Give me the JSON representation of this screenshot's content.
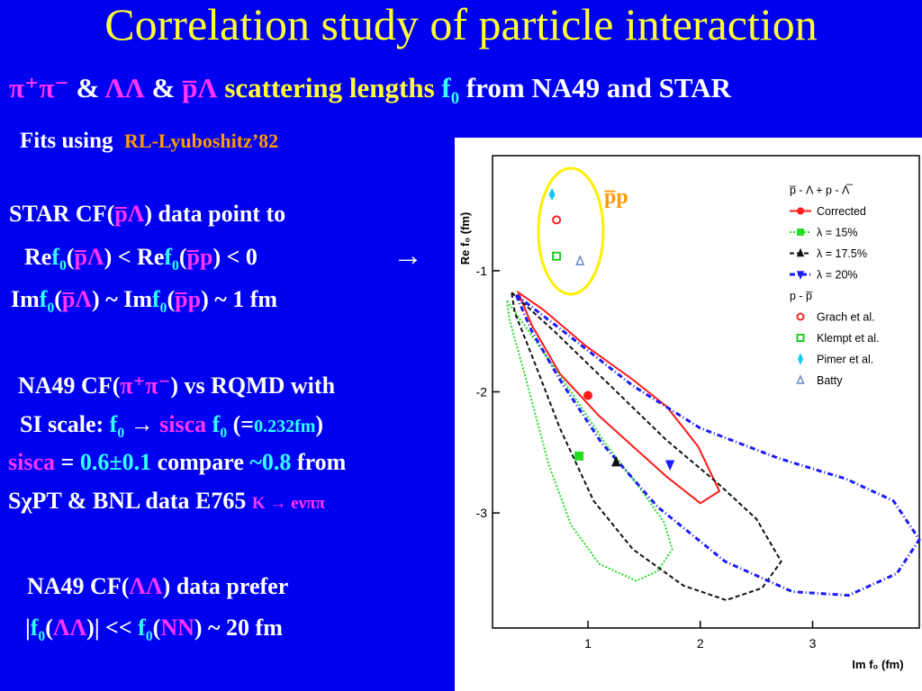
{
  "title": "Correlation study of particle interaction",
  "subtitle": {
    "pipi_glyph": "π⁺π⁻",
    "amp1": "&",
    "ll_glyph": "ΛΛ",
    "amp2": "&",
    "pl_glyph": "p̅Λ",
    "scatter_text": "scattering lengths",
    "f0": "f",
    "f0_sub": "0",
    "rest": "from NA49 and STAR"
  },
  "fits": {
    "label": "Fits using",
    "model": "RL-Lyuboshitz’82"
  },
  "star": {
    "line1_a": "STAR CF(",
    "line1_b": "p̅Λ",
    "line1_c": ") data point to",
    "line2_a": "Re",
    "line2_b": "f",
    "line2_sub": "0",
    "line2_c": "(",
    "line2_d": "p̅Λ",
    "line2_e": ") < Re",
    "line2_f": "f",
    "line2_sub2": "0",
    "line2_g": "(",
    "line2_h": "p̅p",
    "line2_i": ") < 0",
    "arrow": "→",
    "line3_a": "Im",
    "line3_b": "f",
    "line3_sub": "0",
    "line3_c": "(",
    "line3_d": "p̅Λ",
    "line3_e": ") ~ Im",
    "line3_f": "f",
    "line3_sub2": "0",
    "line3_g": "(",
    "line3_h": "p̅p",
    "line3_i": ") ~ 1 fm"
  },
  "na49_pipi": {
    "line1_a": "NA49 CF(",
    "line1_b": "π⁺π⁻",
    "line1_c": ") vs RQMD  with",
    "line2_a": "SI scale: ",
    "line2_b": "f",
    "line2_sub": "0",
    "line2_c": " → ",
    "line2_d": "sisca",
    "line2_e": " f",
    "line2_sub2": "0",
    "line2_f": " (=",
    "line2_g": "0.232fm",
    "line2_h": ")",
    "line3_a": "sisca",
    "line3_b": " = ",
    "line3_c": "0.6±0.1",
    "line3_d": " compare ",
    "line3_e": "~0.8",
    "line3_f": " from",
    "line4_a": "SχPT & BNL data E765 ",
    "line4_b": "K → eνππ"
  },
  "na49_ll": {
    "line1_a": "NA49 CF(",
    "line1_b": "ΛΛ",
    "line1_c": ") data prefer",
    "line2_a": "|",
    "line2_b": "f",
    "line2_sub": "0",
    "line2_c": "(",
    "line2_d": "ΛΛ",
    "line2_e": ")| << ",
    "line2_f": "f",
    "line2_sub2": "0",
    "line2_g": "(",
    "line2_h": "NN",
    "line2_i": ") ~ 20 fm"
  },
  "chart_data": {
    "type": "scatter",
    "title": "",
    "xlabel": "Im f₀  (fm)",
    "ylabel": "Re f₀  (fm)",
    "xlim": [
      0.15,
      3.95
    ],
    "ylim": [
      -3.95,
      -0.05
    ],
    "x_ticks": [
      "1",
      "2",
      "3"
    ],
    "x_tick_values": [
      1,
      2,
      3
    ],
    "y_ticks": [
      "-1",
      "-2",
      "-3"
    ],
    "y_tick_values": [
      -1,
      -2,
      -3
    ],
    "highlight_label": "p̅p",
    "contours": [
      {
        "name": "Corrected",
        "color": "#ff1a1a",
        "dash": "",
        "width": 2,
        "points": [
          [
            0.38,
            -1.18
          ],
          [
            0.6,
            -1.32
          ],
          [
            0.98,
            -1.62
          ],
          [
            1.4,
            -1.9
          ],
          [
            1.7,
            -2.12
          ],
          [
            1.98,
            -2.45
          ],
          [
            2.17,
            -2.82
          ],
          [
            2.0,
            -2.92
          ],
          [
            1.7,
            -2.7
          ],
          [
            1.4,
            -2.45
          ],
          [
            1.1,
            -2.2
          ],
          [
            0.75,
            -1.85
          ],
          [
            0.5,
            -1.45
          ]
        ]
      },
      {
        "name": "λ = 15%",
        "color": "#22dd22",
        "dash": "2,2",
        "width": 2,
        "points": [
          [
            0.28,
            -1.25
          ],
          [
            0.55,
            -1.6
          ],
          [
            0.85,
            -2.0
          ],
          [
            1.15,
            -2.42
          ],
          [
            1.45,
            -2.78
          ],
          [
            1.68,
            -3.08
          ],
          [
            1.75,
            -3.3
          ],
          [
            1.62,
            -3.48
          ],
          [
            1.43,
            -3.56
          ],
          [
            1.1,
            -3.42
          ],
          [
            0.85,
            -3.1
          ],
          [
            0.65,
            -2.6
          ],
          [
            0.45,
            -1.9
          ],
          [
            0.3,
            -1.4
          ]
        ]
      },
      {
        "name": "λ = 17.5%",
        "color": "#111111",
        "dash": "5,3",
        "width": 2,
        "points": [
          [
            0.32,
            -1.18
          ],
          [
            0.7,
            -1.5
          ],
          [
            1.2,
            -1.95
          ],
          [
            1.7,
            -2.4
          ],
          [
            2.15,
            -2.75
          ],
          [
            2.5,
            -3.05
          ],
          [
            2.72,
            -3.4
          ],
          [
            2.55,
            -3.62
          ],
          [
            2.23,
            -3.72
          ],
          [
            1.85,
            -3.6
          ],
          [
            1.4,
            -3.3
          ],
          [
            1.05,
            -2.9
          ],
          [
            0.75,
            -2.3
          ],
          [
            0.5,
            -1.7
          ],
          [
            0.35,
            -1.35
          ]
        ]
      },
      {
        "name": "λ = 20%",
        "color": "#1a1aff",
        "dash": "6,3,1,3",
        "width": 3,
        "points": [
          [
            0.36,
            -1.2
          ],
          [
            0.85,
            -1.55
          ],
          [
            1.4,
            -1.95
          ],
          [
            2.0,
            -2.3
          ],
          [
            2.7,
            -2.55
          ],
          [
            3.3,
            -2.72
          ],
          [
            3.72,
            -2.9
          ],
          [
            3.95,
            -3.22
          ],
          [
            3.75,
            -3.5
          ],
          [
            3.32,
            -3.68
          ],
          [
            2.82,
            -3.65
          ],
          [
            2.22,
            -3.4
          ],
          [
            1.62,
            -2.95
          ],
          [
            1.12,
            -2.42
          ],
          [
            0.75,
            -1.9
          ],
          [
            0.5,
            -1.5
          ]
        ]
      }
    ],
    "legend": [
      {
        "label": "p̅ - Λ + p - Λ̅",
        "kind": "header"
      },
      {
        "label": "Corrected",
        "kind": "line",
        "color": "#ff1a1a",
        "dash": ""
      },
      {
        "label": "λ = 15%",
        "kind": "line",
        "color": "#22dd22",
        "dash": "2,2"
      },
      {
        "label": "λ = 17.5%",
        "kind": "line",
        "color": "#111111",
        "dash": "5,3"
      },
      {
        "label": "λ = 20%",
        "kind": "line",
        "color": "#1a1aff",
        "dash": "6,3,1,3"
      },
      {
        "label": "p - p̅",
        "kind": "header"
      },
      {
        "label": "Grach et al.",
        "kind": "circle",
        "color": "#ff2222"
      },
      {
        "label": "Klempt et al.",
        "kind": "square",
        "color": "#22cc22"
      },
      {
        "label": "Pimer et al.",
        "kind": "diamond",
        "color": "#11ccee"
      },
      {
        "label": "Batty",
        "kind": "triangle",
        "color": "#6688cc"
      }
    ],
    "markers": [
      {
        "series": "Corrected",
        "x": 1.0,
        "y": -2.03,
        "shape": "circle-filled",
        "color": "#ff1a1a"
      },
      {
        "series": "λ = 15%",
        "x": 0.92,
        "y": -2.53,
        "shape": "square-filled",
        "color": "#22dd22"
      },
      {
        "series": "λ = 17.5%",
        "x": 1.25,
        "y": -2.58,
        "shape": "triangle-filled",
        "color": "#111111"
      },
      {
        "series": "λ = 20%",
        "x": 1.73,
        "y": -2.6,
        "shape": "triangle-down-filled",
        "color": "#1a1aff"
      },
      {
        "series": "Grach et al.",
        "x": 0.72,
        "y": -0.58,
        "shape": "circle",
        "color": "#ff2222"
      },
      {
        "series": "Klempt et al.",
        "x": 0.72,
        "y": -0.88,
        "shape": "square",
        "color": "#22cc22"
      },
      {
        "series": "Pimer et al.",
        "x": 0.68,
        "y": -0.37,
        "shape": "diamond",
        "color": "#11ccee"
      },
      {
        "series": "Batty",
        "x": 0.93,
        "y": -0.92,
        "shape": "triangle",
        "color": "#6688cc"
      }
    ]
  }
}
